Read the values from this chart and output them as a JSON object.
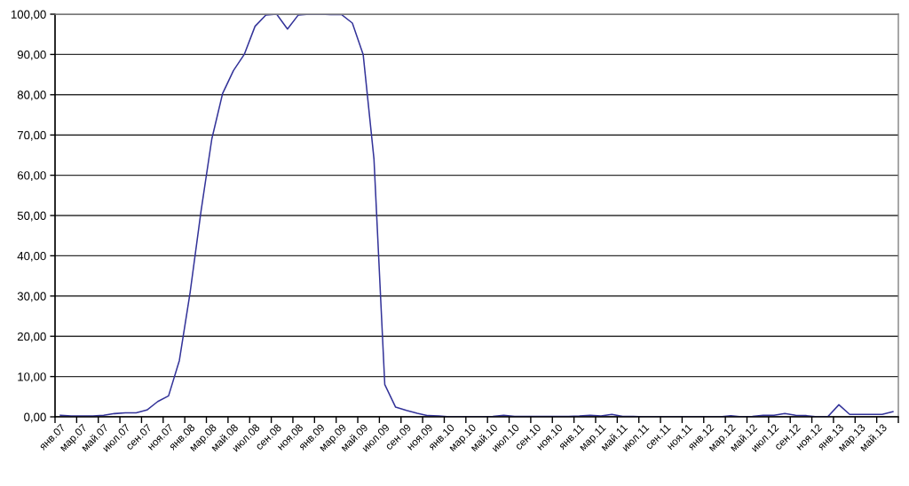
{
  "chart_data": {
    "type": "line",
    "categories": [
      "янв.07",
      null,
      "мар.07",
      null,
      "май.07",
      null,
      "июл.07",
      null,
      "сен.07",
      null,
      "ноя.07",
      null,
      "янв.08",
      null,
      "мар.08",
      null,
      "май.08",
      null,
      "июл.08",
      null,
      "сен.08",
      null,
      "ноя.08",
      null,
      "янв.09",
      null,
      "мар.09",
      null,
      "май.09",
      null,
      "июл.09",
      null,
      "сен.09",
      null,
      "ноя.09",
      null,
      "янв.10",
      null,
      "мар.10",
      null,
      "май.10",
      null,
      "июл.10",
      null,
      "сен.10",
      null,
      "ноя.10",
      null,
      "янв.11",
      null,
      "мар.11",
      null,
      "май.11",
      null,
      "июл.11",
      null,
      "сен.11",
      null,
      "ноя.11",
      null,
      "янв.12",
      null,
      "мар.12",
      null,
      "май.12",
      null,
      "июл.12",
      null,
      "сен.12",
      null,
      "ноя.12",
      null,
      "янв.13",
      null,
      "мар.13",
      null,
      "май.13",
      null
    ],
    "series": [
      {
        "color": "#333399",
        "values": [
          0.4,
          0.2,
          0.2,
          0.2,
          0.4,
          0.8,
          1.0,
          1.0,
          1.7,
          3.8,
          5.2,
          14,
          31,
          51,
          69,
          80.3,
          86,
          90,
          97,
          99.8,
          100,
          96.3,
          99.8,
          100,
          100,
          99.9,
          99.9,
          97.8,
          90,
          64,
          8,
          2.4,
          1.6,
          0.9,
          0.3,
          0.2,
          0,
          0,
          0,
          0,
          0.1,
          0.4,
          0.1,
          0.1,
          0.1,
          0.1,
          0.1,
          0.1,
          0.2,
          0.4,
          0.2,
          0.6,
          0.1,
          0.1,
          0,
          0,
          0,
          0,
          0,
          0,
          0,
          0,
          0.3,
          0,
          0.1,
          0.4,
          0.4,
          0.8,
          0.4,
          0.3,
          0,
          0.1,
          3.0,
          0.6,
          0.6,
          0.6,
          0.6,
          1.3
        ]
      }
    ],
    "ylim": [
      0,
      100
    ],
    "yticks": [
      {
        "value": 0,
        "label": "0,00"
      },
      {
        "value": 10,
        "label": "10,00"
      },
      {
        "value": 20,
        "label": "20,00"
      },
      {
        "value": 30,
        "label": "30,00"
      },
      {
        "value": 40,
        "label": "40,00"
      },
      {
        "value": 50,
        "label": "50,00"
      },
      {
        "value": 60,
        "label": "60,00"
      },
      {
        "value": 70,
        "label": "70,00"
      },
      {
        "value": 80,
        "label": "80,00"
      },
      {
        "value": 90,
        "label": "90,00"
      },
      {
        "value": 100,
        "label": "100,00"
      }
    ],
    "grid": "y"
  }
}
